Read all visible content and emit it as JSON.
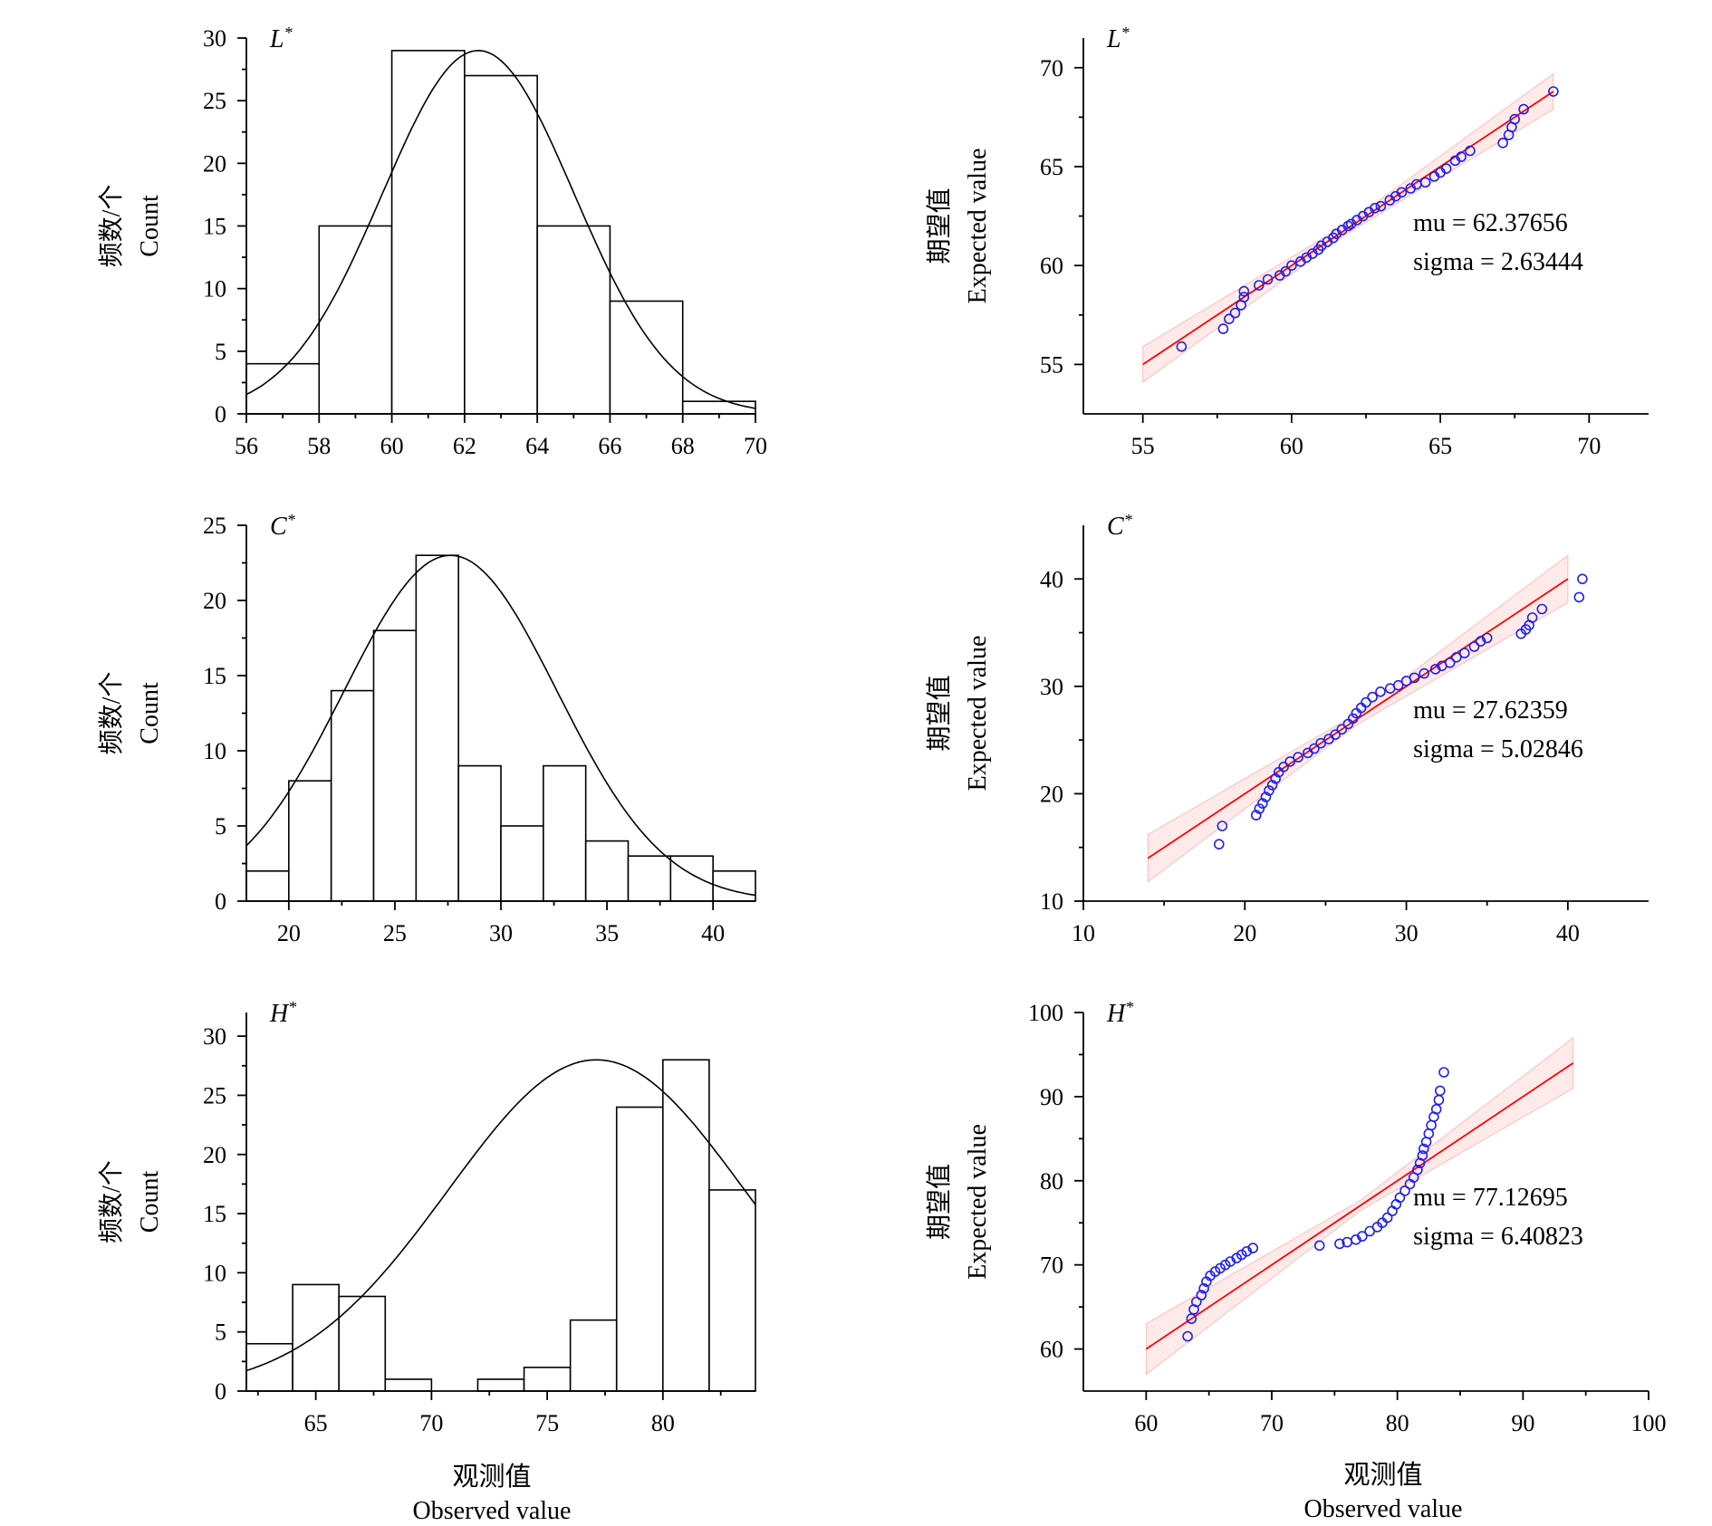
{
  "xlabel": {
    "zh": "观测值",
    "en": "Observed value"
  },
  "chart_data": [
    {
      "type": "bar",
      "panel_letter": "L",
      "panel_sup": "*",
      "ylabel_zh": "频数/个",
      "ylabel_en": "Count",
      "bin_edges": [
        56,
        58,
        60,
        62,
        64,
        66,
        68,
        70
      ],
      "values": [
        4,
        15,
        29,
        27,
        15,
        9,
        1
      ],
      "xlim": [
        56,
        70
      ],
      "ylim": [
        0,
        30
      ],
      "xticks": [
        56,
        58,
        60,
        62,
        64,
        66,
        68,
        70
      ],
      "yticks": [
        0,
        5,
        10,
        15,
        20,
        25,
        30
      ],
      "normal_curve": {
        "mu": 62.37656,
        "sigma": 2.63444,
        "peak": 29
      }
    },
    {
      "type": "scatter",
      "panel_letter": "L",
      "panel_sup": "*",
      "ylabel_zh": "期望值",
      "ylabel_en": "Expected value",
      "xlim": [
        53,
        72
      ],
      "ylim": [
        52.5,
        71.5
      ],
      "xticks": [
        55,
        60,
        65,
        70
      ],
      "yticks": [
        55,
        60,
        65,
        70
      ],
      "mu": 62.37656,
      "sigma": 2.63444,
      "mu_label": "mu = 62.37656",
      "sigma_label": "sigma = 2.63444",
      "ref_line": [
        [
          55,
          55
        ],
        [
          68.8,
          68.8
        ]
      ],
      "band_width": [
        0.9,
        0.25,
        0.9
      ],
      "points": [
        [
          56.3,
          55.9
        ],
        [
          57.7,
          56.8
        ],
        [
          57.9,
          57.3
        ],
        [
          58.1,
          57.6
        ],
        [
          58.3,
          58.0
        ],
        [
          58.4,
          58.4
        ],
        [
          58.4,
          58.7
        ],
        [
          58.9,
          59.0
        ],
        [
          59.2,
          59.3
        ],
        [
          59.6,
          59.5
        ],
        [
          59.8,
          59.7
        ],
        [
          60.0,
          60.0
        ],
        [
          60.3,
          60.2
        ],
        [
          60.5,
          60.4
        ],
        [
          60.7,
          60.6
        ],
        [
          60.9,
          60.8
        ],
        [
          61.0,
          61.0
        ],
        [
          61.2,
          61.2
        ],
        [
          61.4,
          61.4
        ],
        [
          61.5,
          61.6
        ],
        [
          61.7,
          61.8
        ],
        [
          61.9,
          62.0
        ],
        [
          62.0,
          62.1
        ],
        [
          62.2,
          62.3
        ],
        [
          62.4,
          62.5
        ],
        [
          62.6,
          62.7
        ],
        [
          62.8,
          62.9
        ],
        [
          63.0,
          63.0
        ],
        [
          63.3,
          63.3
        ],
        [
          63.5,
          63.5
        ],
        [
          63.7,
          63.7
        ],
        [
          64.0,
          63.9
        ],
        [
          64.2,
          64.1
        ],
        [
          64.5,
          64.2
        ],
        [
          64.8,
          64.5
        ],
        [
          65.0,
          64.7
        ],
        [
          65.2,
          64.9
        ],
        [
          65.5,
          65.3
        ],
        [
          65.7,
          65.5
        ],
        [
          66.0,
          65.8
        ],
        [
          67.1,
          66.2
        ],
        [
          67.3,
          66.6
        ],
        [
          67.4,
          67.0
        ],
        [
          67.5,
          67.4
        ],
        [
          67.8,
          67.9
        ],
        [
          68.8,
          68.8
        ]
      ]
    },
    {
      "type": "bar",
      "panel_letter": "C",
      "panel_sup": "*",
      "ylabel_zh": "频数/个",
      "ylabel_en": "Count",
      "bin_edges": [
        18,
        20,
        22,
        24,
        26,
        28,
        30,
        32,
        34,
        36,
        38,
        40,
        42
      ],
      "values": [
        2,
        8,
        14,
        18,
        23,
        9,
        5,
        9,
        4,
        3,
        3,
        2
      ],
      "xlim": [
        18,
        42
      ],
      "ylim": [
        0,
        25
      ],
      "xticks": [
        20,
        25,
        30,
        35,
        40
      ],
      "yticks": [
        0,
        5,
        10,
        15,
        20,
        25
      ],
      "normal_curve": {
        "mu": 27.62359,
        "sigma": 5.02846,
        "peak": 23
      }
    },
    {
      "type": "scatter",
      "panel_letter": "C",
      "panel_sup": "*",
      "ylabel_zh": "期望值",
      "ylabel_en": "Expected value",
      "xlim": [
        10,
        45
      ],
      "ylim": [
        10,
        45
      ],
      "xticks": [
        10,
        20,
        30,
        40
      ],
      "yticks": [
        10,
        20,
        30,
        40
      ],
      "mu": 27.62359,
      "sigma": 5.02846,
      "mu_label": "mu = 27.62359",
      "sigma_label": "sigma = 5.02846",
      "ref_line": [
        [
          14,
          14
        ],
        [
          40,
          40
        ]
      ],
      "band_width": [
        2.2,
        0.5,
        2.2
      ],
      "points": [
        [
          18.4,
          15.3
        ],
        [
          18.6,
          17.0
        ],
        [
          20.7,
          18.0
        ],
        [
          20.9,
          18.6
        ],
        [
          21.1,
          19.1
        ],
        [
          21.3,
          19.7
        ],
        [
          21.5,
          20.3
        ],
        [
          21.7,
          20.8
        ],
        [
          21.9,
          21.4
        ],
        [
          22.1,
          22.0
        ],
        [
          22.4,
          22.5
        ],
        [
          22.8,
          23.0
        ],
        [
          23.3,
          23.4
        ],
        [
          23.9,
          23.8
        ],
        [
          24.3,
          24.2
        ],
        [
          24.7,
          24.7
        ],
        [
          25.2,
          25.1
        ],
        [
          25.6,
          25.5
        ],
        [
          26.0,
          26.0
        ],
        [
          26.4,
          26.5
        ],
        [
          26.7,
          27.0
        ],
        [
          26.9,
          27.5
        ],
        [
          27.2,
          28.0
        ],
        [
          27.5,
          28.5
        ],
        [
          27.9,
          29.0
        ],
        [
          28.4,
          29.5
        ],
        [
          29.0,
          29.8
        ],
        [
          29.5,
          30.1
        ],
        [
          30.0,
          30.5
        ],
        [
          30.5,
          30.8
        ],
        [
          31.1,
          31.2
        ],
        [
          31.8,
          31.6
        ],
        [
          32.2,
          31.9
        ],
        [
          32.7,
          32.2
        ],
        [
          33.1,
          32.7
        ],
        [
          33.6,
          33.1
        ],
        [
          34.2,
          33.7
        ],
        [
          34.6,
          34.2
        ],
        [
          35.0,
          34.5
        ],
        [
          37.1,
          34.9
        ],
        [
          37.4,
          35.3
        ],
        [
          37.6,
          35.7
        ],
        [
          37.8,
          36.4
        ],
        [
          38.4,
          37.2
        ],
        [
          40.7,
          38.3
        ],
        [
          40.9,
          40.0
        ]
      ]
    },
    {
      "type": "bar",
      "panel_letter": "H",
      "panel_sup": "*",
      "ylabel_zh": "频数/个",
      "ylabel_en": "Count",
      "bin_edges": [
        62,
        64,
        66,
        68,
        70,
        72,
        74,
        76,
        78,
        80,
        82,
        84
      ],
      "values": [
        4,
        9,
        8,
        1,
        0,
        1,
        2,
        6,
        24,
        28,
        17
      ],
      "xlim": [
        62,
        84
      ],
      "ylim": [
        0,
        32
      ],
      "xticks": [
        65,
        70,
        75,
        80
      ],
      "yticks": [
        0,
        5,
        10,
        15,
        20,
        25,
        30
      ],
      "normal_curve": {
        "mu": 77.12695,
        "sigma": 6.40823,
        "peak": 28
      }
    },
    {
      "type": "scatter",
      "panel_letter": "H",
      "panel_sup": "*",
      "ylabel_zh": "期望值",
      "ylabel_en": "Expected value",
      "xlim": [
        55,
        100
      ],
      "ylim": [
        55,
        100
      ],
      "xticks": [
        60,
        70,
        80,
        90,
        100
      ],
      "yticks": [
        60,
        70,
        80,
        90,
        100
      ],
      "mu": 77.12695,
      "sigma": 6.40823,
      "mu_label": "mu = 77.12695",
      "sigma_label": "sigma = 6.40823",
      "ref_line": [
        [
          60,
          60
        ],
        [
          94,
          94
        ]
      ],
      "band_width": [
        3.0,
        0.6,
        3.0
      ],
      "points": [
        [
          63.3,
          61.5
        ],
        [
          63.6,
          63.6
        ],
        [
          63.8,
          64.7
        ],
        [
          64.0,
          65.6
        ],
        [
          64.4,
          66.4
        ],
        [
          64.6,
          67.2
        ],
        [
          64.8,
          68.0
        ],
        [
          65.1,
          68.7
        ],
        [
          65.5,
          69.2
        ],
        [
          65.9,
          69.6
        ],
        [
          66.3,
          70.0
        ],
        [
          66.7,
          70.4
        ],
        [
          67.2,
          70.8
        ],
        [
          67.6,
          71.2
        ],
        [
          68.0,
          71.6
        ],
        [
          68.5,
          72.0
        ],
        [
          73.8,
          72.3
        ],
        [
          75.4,
          72.5
        ],
        [
          76.0,
          72.7
        ],
        [
          76.7,
          73.0
        ],
        [
          77.2,
          73.4
        ],
        [
          77.8,
          74.0
        ],
        [
          78.4,
          74.5
        ],
        [
          78.8,
          75.0
        ],
        [
          79.2,
          75.6
        ],
        [
          79.6,
          76.4
        ],
        [
          79.9,
          77.2
        ],
        [
          80.2,
          78.0
        ],
        [
          80.6,
          78.8
        ],
        [
          81.0,
          79.6
        ],
        [
          81.3,
          80.4
        ],
        [
          81.6,
          81.3
        ],
        [
          81.8,
          82.1
        ],
        [
          82.0,
          83.0
        ],
        [
          82.1,
          83.8
        ],
        [
          82.3,
          84.6
        ],
        [
          82.5,
          85.6
        ],
        [
          82.7,
          86.6
        ],
        [
          82.9,
          87.6
        ],
        [
          83.1,
          88.5
        ],
        [
          83.3,
          89.6
        ],
        [
          83.4,
          90.7
        ],
        [
          83.7,
          92.9
        ]
      ]
    }
  ]
}
